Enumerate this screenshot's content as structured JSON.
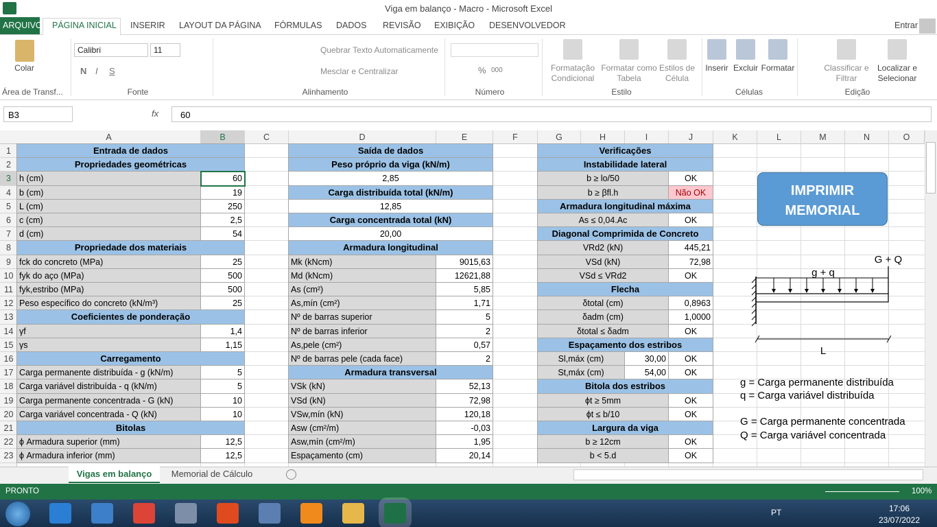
{
  "title_bar": {
    "title": "Viga em balanço - Macro - Microsoft Excel",
    "account": "Entrar"
  },
  "ribbon": {
    "tabs": [
      "ARQUIVO",
      "PÁGINA INICIAL",
      "INSERIR",
      "LAYOUT DA PÁGINA",
      "FÓRMULAS",
      "DADOS",
      "REVISÃO",
      "EXIBIÇÃO",
      "DESENVOLVEDOR"
    ],
    "buttons": [
      "Colar",
      "Calibri",
      "11",
      "Quebrar Texto Automaticamente",
      "Mesclar e Centralizar",
      "Formatação Condicional",
      "Formatar como Tabela",
      "Estilos de Célula",
      "Inserir",
      "Excluir",
      "Formatar",
      "Classificar e Filtrar",
      "Localizar e Selecionar"
    ],
    "small": [
      "N",
      "I",
      "S",
      "%",
      "000"
    ],
    "groups": [
      "Área de Transf...",
      "Fonte",
      "Alinhamento",
      "Número",
      "Estilo",
      "Células",
      "Edição"
    ]
  },
  "formula_bar": {
    "name_box": "B3",
    "fx": "fx",
    "value": "60"
  },
  "sheet": {
    "columns": [
      "A",
      "B",
      "C",
      "D",
      "E",
      "F",
      "G",
      "H",
      "I",
      "J",
      "K",
      "L",
      "M",
      "N",
      "O"
    ],
    "rows": [
      {
        "header": "1",
        "A": "Entrada de dados",
        "D": "Saída de dados",
        "G": "Verificações"
      },
      {
        "header": "2",
        "A": "Propriedades geométricas",
        "D": "Peso próprio da viga (kN/m)",
        "G": "Instabilidade lateral"
      },
      {
        "header": "3",
        "A": "h (cm)",
        "B": "60",
        "D": "2,85",
        "G": "b ≥ lo/50",
        "J": "OK"
      },
      {
        "header": "4",
        "A": "b (cm)",
        "B": "19",
        "D": "Carga distribuída total (kN/m)",
        "G": "b ≥ βfl.h",
        "J": "Não OK"
      },
      {
        "header": "5",
        "A": "L (cm)",
        "B": "250",
        "D": "12,85",
        "G": "Armadura longitudinal máxima"
      },
      {
        "header": "6",
        "A": "c (cm)",
        "B": "2,5",
        "D": "Carga concentrada total (kN)",
        "G": "As ≤ 0,04.Ac",
        "J": "OK"
      },
      {
        "header": "7",
        "A": "d (cm)",
        "B": "54",
        "D": "20,00",
        "G": "Diagonal Comprimida de Concreto"
      },
      {
        "header": "8",
        "A": "Propriedade dos materiais",
        "D": "Armadura longitudinal",
        "G": "VRd2 (kN)",
        "J": "445,21"
      },
      {
        "header": "9",
        "A": "fck do concreto (MPa)",
        "B": "25",
        "D": "Mk (kNcm)",
        "E": "9015,63",
        "G": "VSd (kN)",
        "J": "72,98"
      },
      {
        "header": "10",
        "A": "fyk do aço (MPa)",
        "B": "500",
        "D": "Md (kNcm)",
        "E": "12621,88",
        "G": "VSd ≤ VRd2",
        "J": "OK"
      },
      {
        "header": "11",
        "A": "fyk,estribo (MPa)",
        "B": "500",
        "D": "As (cm²)",
        "E": "5,85",
        "G": "Flecha"
      },
      {
        "header": "12",
        "A": "Peso específico do concreto (kN/m³)",
        "B": "25",
        "D": "As,mín (cm²)",
        "E": "1,71",
        "G": "δtotal (cm)",
        "J": "0,8963"
      },
      {
        "header": "13",
        "A": "Coeficientes de ponderação",
        "D": "Nº de barras superior",
        "E": "5",
        "G": "δadm (cm)",
        "J": "1,0000"
      },
      {
        "header": "14",
        "A": "γf",
        "B": "1,4",
        "D": "Nº de barras inferior",
        "E": "2",
        "G": "δtotal ≤ δadm",
        "J": "OK"
      },
      {
        "header": "15",
        "A": "γs",
        "B": "1,15",
        "D": "As,pele (cm²)",
        "E": "0,57",
        "G": "Espaçamento dos estribos"
      },
      {
        "header": "16",
        "A": "Carregamento",
        "D": "Nº de barras pele (cada face)",
        "E": "2",
        "G": "Sl,máx (cm)",
        "I": "30,00",
        "J": "OK"
      },
      {
        "header": "17",
        "A": "Carga permanente distribuída - g (kN/m)",
        "B": "5",
        "D": "Armadura transversal",
        "G": "St,máx (cm)",
        "I": "54,00",
        "J": "OK"
      },
      {
        "header": "18",
        "A": "Carga variável distribuída - q (kN/m)",
        "B": "5",
        "D": "VSk (kN)",
        "E": "52,13",
        "G": "Bitola dos estribos"
      },
      {
        "header": "19",
        "A": "Carga permanente concentrada - G (kN)",
        "B": "10",
        "D": "VSd (kN)",
        "E": "72,98",
        "G": "ϕt ≥ 5mm",
        "J": "OK"
      },
      {
        "header": "20",
        "A": "Carga variável concentrada - Q (kN)",
        "B": "10",
        "D": "VSw,mín (kN)",
        "E": "120,18",
        "G": "ϕt ≤ b/10",
        "J": "OK"
      },
      {
        "header": "21",
        "A": "Bitolas",
        "D": "Asw (cm²/m)",
        "E": "-0,03",
        "G": "Largura da viga"
      },
      {
        "header": "22",
        "A": "ϕ Armadura superior (mm)",
        "B": "12,5",
        "D": "Asw,mín (cm²/m)",
        "E": "1,95",
        "G": "b ≥ 12cm",
        "J": "OK"
      },
      {
        "header": "23",
        "A": "ϕ Armadura inferior (mm)",
        "B": "12,5",
        "D": "Espaçamento (cm)",
        "E": "20,14",
        "G": "b < 5.d",
        "J": "OK"
      }
    ]
  },
  "panel": {
    "button": "IMPRIMIR MEMORIAL",
    "diagram": {
      "point_load": "G + Q",
      "distributed_load": "g + q",
      "length": "L"
    },
    "legend": [
      "g = Carga permanente distribuída",
      "q = Carga variável distribuída",
      "G = Carga permanente concentrada",
      "Q = Carga variável concentrada"
    ]
  },
  "sheet_tabs": [
    "Vigas em balanço",
    "Memorial de Cálculo"
  ],
  "status_bar": {
    "mode": "PRONTO",
    "zoom": "100%"
  },
  "taskbar": {
    "language": "PT",
    "time": "17:06",
    "date": "23/07/2022"
  }
}
